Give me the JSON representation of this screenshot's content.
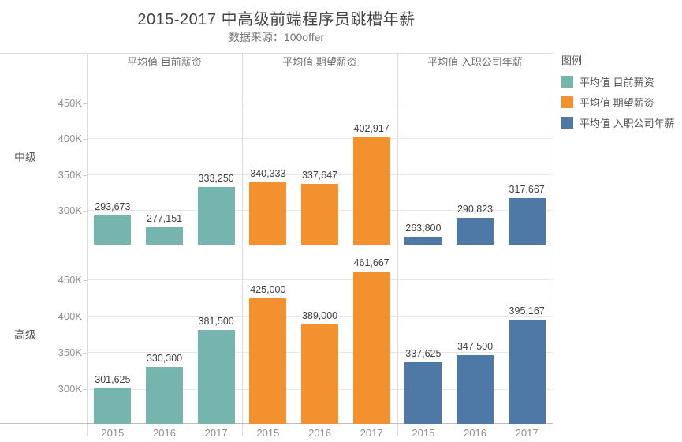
{
  "chart_data": {
    "type": "bar",
    "title": "2015-2017 中高级前端程序员跳槽年薪",
    "subtitle": "数据来源：100offer",
    "legend_title": "图例",
    "legend_position": "right",
    "col_headers": [
      "平均值 目前薪资",
      "平均值 期望薪资",
      "平均值 入职公司年薪"
    ],
    "row_headers": [
      "中级",
      "高级"
    ],
    "x_categories": [
      "2015",
      "2016",
      "2017"
    ],
    "y_axis": {
      "range": [
        253000,
        497000
      ],
      "ticks": [
        {
          "label": "300K",
          "value": 300000
        },
        {
          "label": "350K",
          "value": 350000
        },
        {
          "label": "400K",
          "value": 400000
        },
        {
          "label": "450K",
          "value": 450000
        }
      ],
      "grid": true
    },
    "series_meta": [
      {
        "name": "平均值 目前薪资",
        "color": "#76b5ae"
      },
      {
        "name": "平均值 期望薪资",
        "color": "#f2912d"
      },
      {
        "name": "平均值 入职公司年薪",
        "color": "#4e79a7"
      }
    ],
    "rows": [
      {
        "row": "中级",
        "series": [
          {
            "name": "平均值 目前薪资",
            "values": [
              293673,
              277151,
              333250
            ]
          },
          {
            "name": "平均值 期望薪资",
            "values": [
              340333,
              337647,
              402917
            ]
          },
          {
            "name": "平均值 入职公司年薪",
            "values": [
              263800,
              290823,
              317667
            ]
          }
        ]
      },
      {
        "row": "高级",
        "series": [
          {
            "name": "平均值 目前薪资",
            "values": [
              301625,
              330300,
              381500
            ]
          },
          {
            "name": "平均值 期望薪资",
            "values": [
              425000,
              389000,
              461667
            ]
          },
          {
            "name": "平均值 入职公司年薪",
            "values": [
              337625,
              347500,
              395167
            ]
          }
        ]
      }
    ]
  }
}
